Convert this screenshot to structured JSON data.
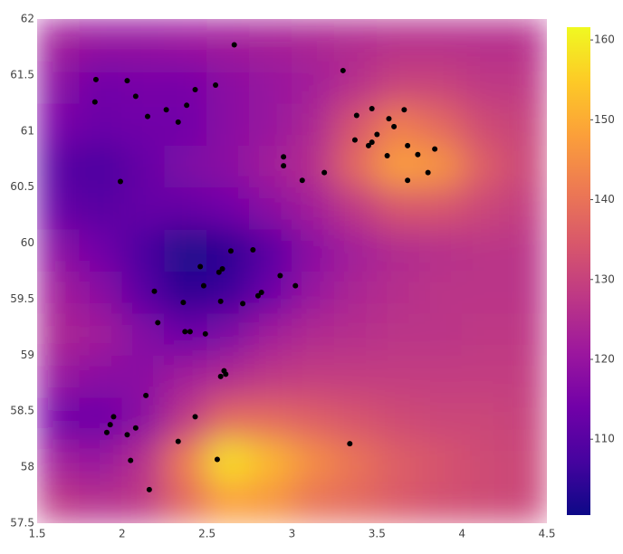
{
  "chart_data": {
    "type": "contour",
    "xlim": [
      1.5,
      4.5
    ],
    "ylim": [
      57.5,
      62
    ],
    "xticks": [
      1.5,
      2,
      2.5,
      3,
      3.5,
      4,
      4.5
    ],
    "yticks": [
      57.5,
      58,
      58.5,
      59,
      59.5,
      60,
      60.5,
      61,
      61.5,
      62
    ],
    "grid_x": [
      1.625,
      1.875,
      2.125,
      2.375,
      2.625,
      2.875,
      3.125,
      3.375,
      3.625,
      3.875,
      4.125,
      4.375
    ],
    "grid_y": [
      57.6875,
      58.0625,
      58.4375,
      58.8125,
      59.1875,
      59.5625,
      59.9375,
      60.3125,
      60.6875,
      61.0625,
      61.4375,
      61.8125
    ],
    "z": [
      [
        128,
        126,
        128,
        138,
        148,
        146,
        140,
        138,
        135,
        133,
        132,
        131
      ],
      [
        122,
        120,
        126,
        142,
        158,
        152,
        145,
        140,
        136,
        134,
        132,
        131
      ],
      [
        114,
        113,
        118,
        128,
        138,
        138,
        136,
        134,
        132,
        131,
        131,
        130
      ],
      [
        120,
        118,
        118,
        122,
        125,
        128,
        129,
        129,
        129,
        129,
        129,
        129
      ],
      [
        124,
        122,
        117,
        113,
        116,
        122,
        125,
        126,
        127,
        127,
        128,
        128
      ],
      [
        122,
        118,
        110,
        104,
        106,
        113,
        120,
        124,
        126,
        127,
        127,
        127
      ],
      [
        118,
        114,
        108,
        102,
        104,
        110,
        118,
        122,
        125,
        126,
        127,
        127
      ],
      [
        112,
        110,
        112,
        112,
        114,
        118,
        122,
        128,
        134,
        134,
        131,
        129
      ],
      [
        110,
        108,
        112,
        116,
        118,
        122,
        126,
        138,
        148,
        146,
        136,
        131
      ],
      [
        115,
        113,
        114,
        114,
        118,
        120,
        124,
        134,
        142,
        138,
        132,
        130
      ],
      [
        118,
        114,
        115,
        115,
        118,
        120,
        122,
        126,
        130,
        130,
        128,
        128
      ],
      [
        122,
        120,
        120,
        121,
        122,
        123,
        124,
        125,
        126,
        126,
        126,
        126
      ]
    ],
    "zlim": [
      100.5,
      161.6
    ],
    "zticks": [
      110,
      120,
      130,
      140,
      150,
      160
    ],
    "colorscale": [
      "#0d0887",
      "#46039f",
      "#7201a8",
      "#9c179e",
      "#bd3786",
      "#d8576b",
      "#ed7953",
      "#fb9f3a",
      "#fdca26",
      "#f0f921"
    ],
    "points": {
      "color": "#000000",
      "x": [
        1.846,
        1.84,
        2.03,
        2.08,
        2.15,
        2.26,
        2.33,
        2.38,
        2.43,
        2.55,
        2.66,
        3.3,
        1.99,
        2.95,
        2.95,
        3.06,
        3.19,
        3.38,
        3.37,
        3.47,
        3.5,
        3.47,
        3.45,
        3.57,
        3.6,
        3.66,
        3.68,
        3.56,
        3.74,
        3.84,
        3.8,
        3.68,
        2.64,
        2.77,
        2.46,
        2.59,
        2.57,
        2.93,
        2.48,
        3.02,
        2.19,
        2.82,
        2.8,
        2.36,
        2.58,
        2.71,
        2.21,
        2.37,
        2.4,
        2.49,
        2.6,
        2.61,
        2.58,
        2.14,
        2.43,
        1.95,
        1.93,
        2.08,
        1.91,
        2.03,
        2.33,
        3.34,
        2.05,
        2.56,
        2.16
      ],
      "y": [
        61.46,
        61.26,
        61.45,
        61.31,
        61.13,
        61.19,
        61.08,
        61.23,
        61.37,
        61.41,
        61.77,
        61.54,
        60.55,
        60.77,
        60.69,
        60.56,
        60.63,
        61.14,
        60.92,
        61.2,
        60.97,
        60.9,
        60.87,
        61.11,
        61.04,
        61.19,
        60.87,
        60.78,
        60.79,
        60.84,
        60.63,
        60.56,
        59.93,
        59.94,
        59.79,
        59.77,
        59.74,
        59.71,
        59.62,
        59.62,
        59.57,
        59.56,
        59.53,
        59.47,
        59.48,
        59.46,
        59.29,
        59.21,
        59.21,
        59.19,
        58.86,
        58.83,
        58.81,
        58.64,
        58.45,
        58.45,
        58.38,
        58.35,
        58.31,
        58.29,
        58.23,
        58.21,
        58.06,
        58.07,
        57.8
      ]
    }
  }
}
